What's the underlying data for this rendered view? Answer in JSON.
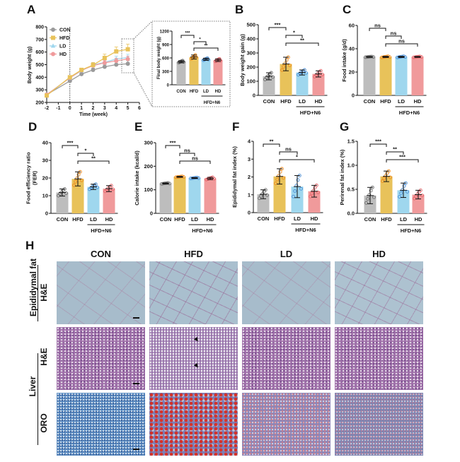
{
  "panels": {
    "A": "A",
    "B": "B",
    "C": "C",
    "D": "D",
    "E": "E",
    "F": "F",
    "G": "G",
    "H": "H"
  },
  "colors": {
    "CON": "#bdbdbd",
    "HFD": "#e8c25a",
    "LD": "#9fd7ee",
    "HD": "#f09a9b",
    "CON_dot": "#6f6f6f",
    "HFD_dot": "#f08a1c",
    "LD_dot": "#4a8fd8",
    "HD_dot": "#e8646a"
  },
  "chart_data": [
    {
      "id": "A",
      "type": "line",
      "xlabel": "Time (week)",
      "ylabel": "Body weight (g)",
      "xlim": [
        -2,
        6
      ],
      "ylim": [
        200,
        800
      ],
      "xticks": [
        "-2",
        "-1",
        "0",
        "1",
        "2",
        "3",
        "4",
        "5",
        "6"
      ],
      "yticks": [
        "200",
        "300",
        "400",
        "500",
        "600",
        "700",
        "800"
      ],
      "x": [
        -2,
        0,
        1,
        2,
        3,
        4,
        5
      ],
      "series": [
        {
          "name": "CON",
          "values": [
            262,
            370,
            425,
            458,
            483,
            500,
            507
          ],
          "err": [
            10,
            15,
            22,
            15,
            18,
            20,
            25
          ]
        },
        {
          "name": "HFD",
          "values": [
            255,
            400,
            458,
            497,
            553,
            605,
            622
          ],
          "err": [
            10,
            12,
            15,
            20,
            30,
            35,
            40
          ]
        },
        {
          "name": "LD",
          "values": [
            262,
            395,
            452,
            497,
            518,
            545,
            557
          ],
          "err": [
            10,
            12,
            15,
            18,
            20,
            22,
            25
          ]
        },
        {
          "name": "HD",
          "values": [
            262,
            395,
            455,
            492,
            515,
            530,
            545
          ],
          "err": [
            10,
            12,
            15,
            18,
            18,
            20,
            22
          ]
        }
      ],
      "legend": "top-left"
    },
    {
      "id": "A-inset",
      "type": "bar",
      "ylabel": "Final body weight (g)",
      "ylim": [
        0,
        1200
      ],
      "yticks": [
        "0",
        "300",
        "600",
        "900",
        "1200"
      ],
      "categories": [
        "CON",
        "HFD",
        "LD",
        "HD"
      ],
      "values": [
        515,
        620,
        570,
        550
      ],
      "sd": [
        25,
        45,
        25,
        30
      ],
      "group_label": "HFD+N6",
      "annotations": [
        {
          "pair": [
            0,
            1
          ],
          "label": "***"
        },
        {
          "pair": [
            1,
            2
          ],
          "label": "*"
        },
        {
          "pair": [
            1,
            3
          ],
          "label": "**"
        }
      ]
    },
    {
      "id": "B",
      "type": "bar",
      "ylabel": "Body weight gain (g)",
      "ylim": [
        0,
        500
      ],
      "yticks": [
        "0",
        "100",
        "200",
        "300",
        "400",
        "500"
      ],
      "categories": [
        "CON",
        "HFD",
        "LD",
        "HD"
      ],
      "values": [
        135,
        222,
        162,
        152
      ],
      "sd": [
        25,
        48,
        18,
        22
      ],
      "group_label": "HFD+N6",
      "annotations": [
        {
          "pair": [
            0,
            1
          ],
          "label": "***"
        },
        {
          "pair": [
            1,
            2
          ],
          "label": "*"
        },
        {
          "pair": [
            1,
            3
          ],
          "label": "**"
        }
      ]
    },
    {
      "id": "C",
      "type": "bar",
      "ylabel": "Food intake (g/d)",
      "ylim": [
        0,
        60
      ],
      "yticks": [
        "0",
        "20",
        "40",
        "60"
      ],
      "categories": [
        "CON",
        "HFD",
        "LD",
        "HD"
      ],
      "values": [
        33,
        33,
        33,
        33
      ],
      "sd": [
        0.3,
        0.5,
        0.5,
        0.4
      ],
      "group_label": "HFD+N6",
      "annotations": [
        {
          "pair": [
            0,
            1
          ],
          "label": "ns"
        },
        {
          "pair": [
            1,
            2
          ],
          "label": "ns"
        },
        {
          "pair": [
            1,
            3
          ],
          "label": "ns"
        }
      ]
    },
    {
      "id": "D",
      "type": "bar",
      "ylabel": "Food efficiency ratio\n(FER)",
      "ylim": [
        0,
        40
      ],
      "yticks": [
        "0",
        "10",
        "20",
        "30",
        "40"
      ],
      "categories": [
        "CON",
        "HFD",
        "LD",
        "HD"
      ],
      "values": [
        11.8,
        19.5,
        15,
        14
      ],
      "sd": [
        2,
        4,
        1.5,
        1.7
      ],
      "group_label": "HFD+N6",
      "annotations": [
        {
          "pair": [
            0,
            1
          ],
          "label": "***"
        },
        {
          "pair": [
            1,
            2
          ],
          "label": "*"
        },
        {
          "pair": [
            1,
            3
          ],
          "label": "**"
        }
      ]
    },
    {
      "id": "E",
      "type": "bar",
      "ylabel": "Calorie intake (kcal/d)",
      "ylim": [
        0,
        300
      ],
      "yticks": [
        "0",
        "100",
        "200",
        "300"
      ],
      "categories": [
        "CON",
        "HFD",
        "LD",
        "HD"
      ],
      "values": [
        127,
        155,
        150,
        148
      ],
      "sd": [
        2,
        2,
        2,
        5
      ],
      "group_label": "HFD+N6",
      "annotations": [
        {
          "pair": [
            0,
            1
          ],
          "label": "***"
        },
        {
          "pair": [
            1,
            2
          ],
          "label": "ns"
        },
        {
          "pair": [
            1,
            3
          ],
          "label": "ns"
        }
      ]
    },
    {
      "id": "F",
      "type": "bar",
      "ylabel": "Epididymal fat index (%)",
      "ylim": [
        0,
        4
      ],
      "yticks": [
        "0",
        "1",
        "2",
        "3",
        "4"
      ],
      "categories": [
        "CON",
        "HFD",
        "LD",
        "HD"
      ],
      "values": [
        1.03,
        2.03,
        1.46,
        1.2
      ],
      "sd": [
        0.25,
        0.43,
        0.62,
        0.33
      ],
      "group_label": "HFD+N6",
      "annotations": [
        {
          "pair": [
            0,
            1
          ],
          "label": "**"
        },
        {
          "pair": [
            1,
            2
          ],
          "label": "ns"
        },
        {
          "pair": [
            1,
            3
          ],
          "label": "*"
        }
      ]
    },
    {
      "id": "G",
      "type": "bar",
      "ylabel": "Perirenal fat index (%)",
      "ylim": [
        0,
        1.5
      ],
      "yticks": [
        "0.0",
        "0.5",
        "1.0",
        "1.5"
      ],
      "categories": [
        "CON",
        "HFD",
        "LD",
        "HD"
      ],
      "values": [
        0.37,
        0.77,
        0.48,
        0.39
      ],
      "sd": [
        0.17,
        0.11,
        0.15,
        0.09
      ],
      "group_label": "HFD+N6",
      "annotations": [
        {
          "pair": [
            0,
            1
          ],
          "label": "***"
        },
        {
          "pair": [
            1,
            2
          ],
          "label": "**"
        },
        {
          "pair": [
            1,
            3
          ],
          "label": "***"
        }
      ]
    }
  ],
  "histology": {
    "columns": [
      "CON",
      "HFD",
      "LD",
      "HD"
    ],
    "tissue_labels": {
      "fat": "Epididymal fat",
      "liver": "Liver"
    },
    "stain_labels": {
      "fat_he": "H&E",
      "liver_he": "H&E",
      "liver_oro": "ORO"
    }
  }
}
